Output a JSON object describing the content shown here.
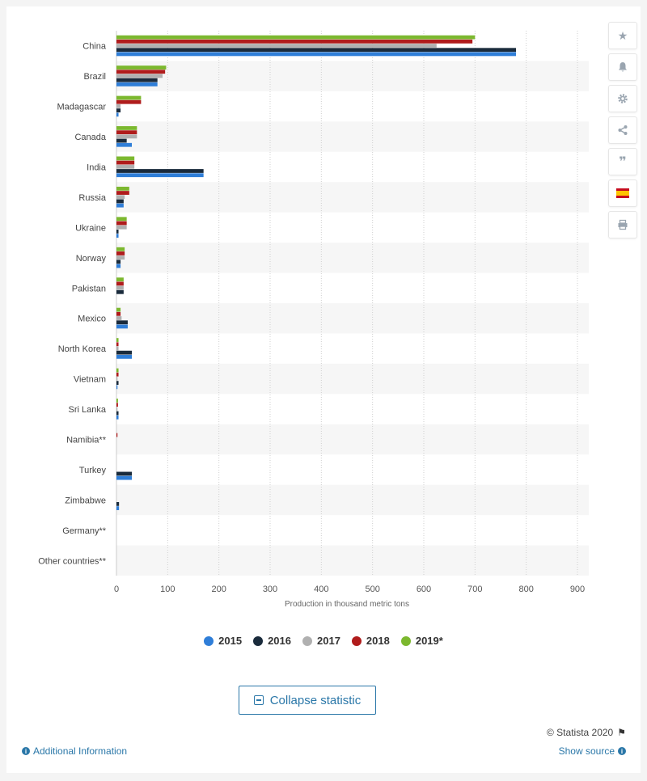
{
  "chart_data": {
    "type": "bar",
    "orientation": "horizontal",
    "categories": [
      "China",
      "Brazil",
      "Madagascar",
      "Canada",
      "India",
      "Russia",
      "Ukraine",
      "Norway",
      "Pakistan",
      "Mexico",
      "North Korea",
      "Vietnam",
      "Sri Lanka",
      "Namibia**",
      "Turkey",
      "Zimbabwe",
      "Germany**",
      "Other countries**"
    ],
    "series": [
      {
        "name": "2015",
        "color": "#2f7ed8",
        "values": [
          780,
          80,
          4,
          30,
          170,
          14,
          4,
          8,
          0,
          22,
          30,
          2,
          4,
          0,
          30,
          5,
          0,
          0
        ]
      },
      {
        "name": "2016",
        "color": "#1a2b3c",
        "values": [
          780,
          80,
          8,
          20,
          170,
          14,
          4,
          8,
          14,
          22,
          30,
          4,
          4,
          0,
          30,
          5,
          0,
          0
        ]
      },
      {
        "name": "2017",
        "color": "#b0b0b0",
        "values": [
          625,
          90,
          8,
          40,
          35,
          16,
          20,
          16,
          14,
          10,
          4,
          2,
          2,
          0,
          0,
          0,
          0,
          0
        ]
      },
      {
        "name": "2018",
        "color": "#b01c1c",
        "values": [
          695,
          95,
          48,
          40,
          35,
          25,
          20,
          16,
          14,
          8,
          4,
          4,
          3,
          2,
          0,
          0,
          0,
          0
        ]
      },
      {
        "name": "2019*",
        "color": "#7cb82f",
        "values": [
          700,
          97,
          48,
          40,
          35,
          25,
          20,
          16,
          14,
          8,
          4,
          4,
          3,
          0,
          0,
          0,
          0,
          0
        ]
      }
    ],
    "xlabel": "Production in thousand metric tons",
    "xlim": [
      0,
      900
    ],
    "xticks": [
      0,
      100,
      200,
      300,
      400,
      500,
      600,
      700,
      800,
      900
    ],
    "grid": "vertical-dotted",
    "legend": "bottom-center"
  },
  "legend_items": [
    {
      "label": "2015",
      "color": "#2f7ed8"
    },
    {
      "label": "2016",
      "color": "#1a2b3c"
    },
    {
      "label": "2017",
      "color": "#b0b0b0"
    },
    {
      "label": "2018",
      "color": "#b01c1c"
    },
    {
      "label": "2019*",
      "color": "#7cb82f"
    }
  ],
  "toolbar": {
    "icons": [
      "star-icon",
      "bell-icon",
      "gear-icon",
      "share-icon",
      "quote-icon",
      "spain-flag-icon",
      "print-icon"
    ]
  },
  "collapse_label": "Collapse statistic",
  "copyright": "© Statista 2020",
  "additional_info": "Additional Information",
  "show_source": "Show source"
}
